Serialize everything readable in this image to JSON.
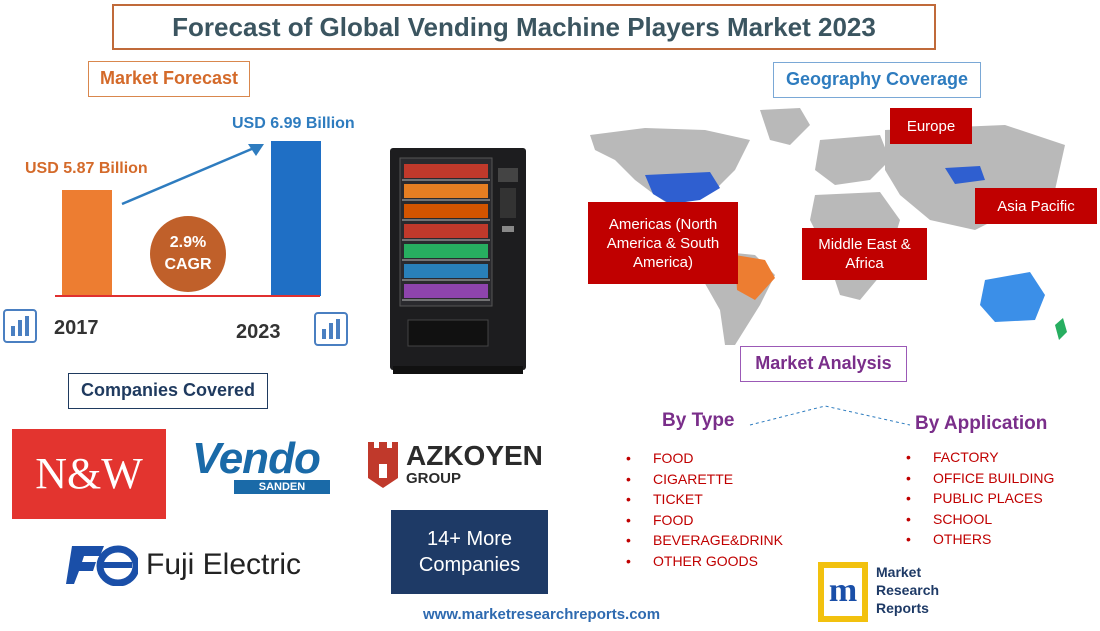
{
  "title": "Forecast of Global Vending Machine Players Market 2023",
  "market_forecast": {
    "heading": "Market Forecast",
    "value_2017": "USD 5.87 Billion",
    "value_2023": "USD 6.99 Billion",
    "cagr_value": "2.9%",
    "cagr_label": "CAGR",
    "year_start": "2017",
    "year_end": "2023",
    "icons": [
      "bar-chart-icon",
      "arrow-up-icon"
    ],
    "colors": {
      "start_bar": "#ed7d31",
      "end_bar": "#1f6fc5",
      "cagr": "#c0602a"
    }
  },
  "chart_data": {
    "type": "bar",
    "categories": [
      "2017",
      "2023"
    ],
    "values": [
      5.87,
      6.99
    ],
    "ylabel": "",
    "xlabel": ""
  },
  "geography": {
    "heading": "Geography Coverage",
    "regions": [
      "Europe",
      "Americas (North America & South America)",
      "Middle East & Africa",
      "Asia Pacific"
    ],
    "region_color": "#c00000"
  },
  "market_analysis": {
    "heading": "Market Analysis",
    "by_type": {
      "heading": "By Type",
      "items": [
        "FOOD",
        "CIGARETTE",
        "TICKET",
        "FOOD",
        "BEVERAGE&DRINK",
        "OTHER GOODS"
      ]
    },
    "by_application": {
      "heading": "By Application",
      "items": [
        "FACTORY",
        "OFFICE BUILDING",
        "PUBLIC PLACES",
        "SCHOOL",
        "OTHERS"
      ]
    }
  },
  "companies": {
    "heading": "Companies Covered",
    "logos": {
      "nw": "N&W",
      "vendo": "Vendo",
      "vendo_sub": "SANDEN",
      "azkoyen": "AZKOYEN",
      "azkoyen_sub": "GROUP",
      "fuji": "Fuji Electric"
    },
    "more_line1": "14+ More",
    "more_line2": "Companies"
  },
  "brand": {
    "line1": "Market",
    "line2": "Research",
    "line3": "Reports"
  },
  "url": "www.marketresearchreports.com"
}
